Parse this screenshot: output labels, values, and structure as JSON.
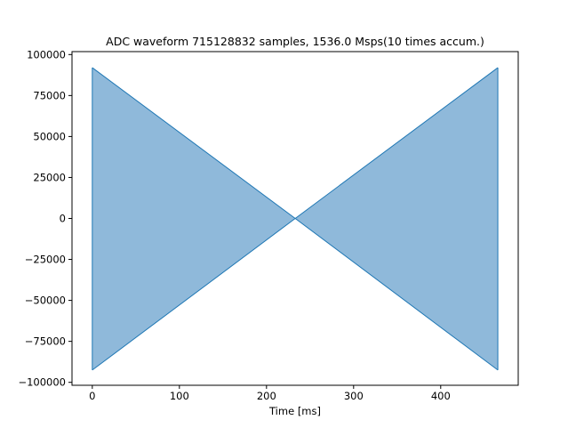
{
  "chart_data": {
    "type": "area",
    "title": "ADC waveform 715128832 samples, 1536.0 Msps(10 times accum.)",
    "xlabel": "Time [ms]",
    "ylabel": "",
    "xlim": [
      -23.3,
      489.0
    ],
    "ylim": [
      -101800,
      101800
    ],
    "x_ticks": [
      0,
      100,
      200,
      300,
      400
    ],
    "x_tick_labels": [
      "0",
      "100",
      "200",
      "300",
      "400"
    ],
    "y_ticks": [
      100000,
      75000,
      50000,
      25000,
      0,
      -25000,
      -50000,
      -75000,
      -100000
    ],
    "y_tick_labels": [
      "100000",
      "75000",
      "50000",
      "25000",
      "0",
      "−25000",
      "−50000",
      "−75000",
      "−100000"
    ],
    "grid": false,
    "series": [
      {
        "color": "#1f77b4",
        "fill_color": "#8fb9da",
        "envelope_x": [
          0,
          233.0,
          465.6
        ],
        "upper": [
          92000,
          0,
          92000
        ],
        "lower": [
          -92500,
          0,
          -92500
        ]
      }
    ]
  }
}
